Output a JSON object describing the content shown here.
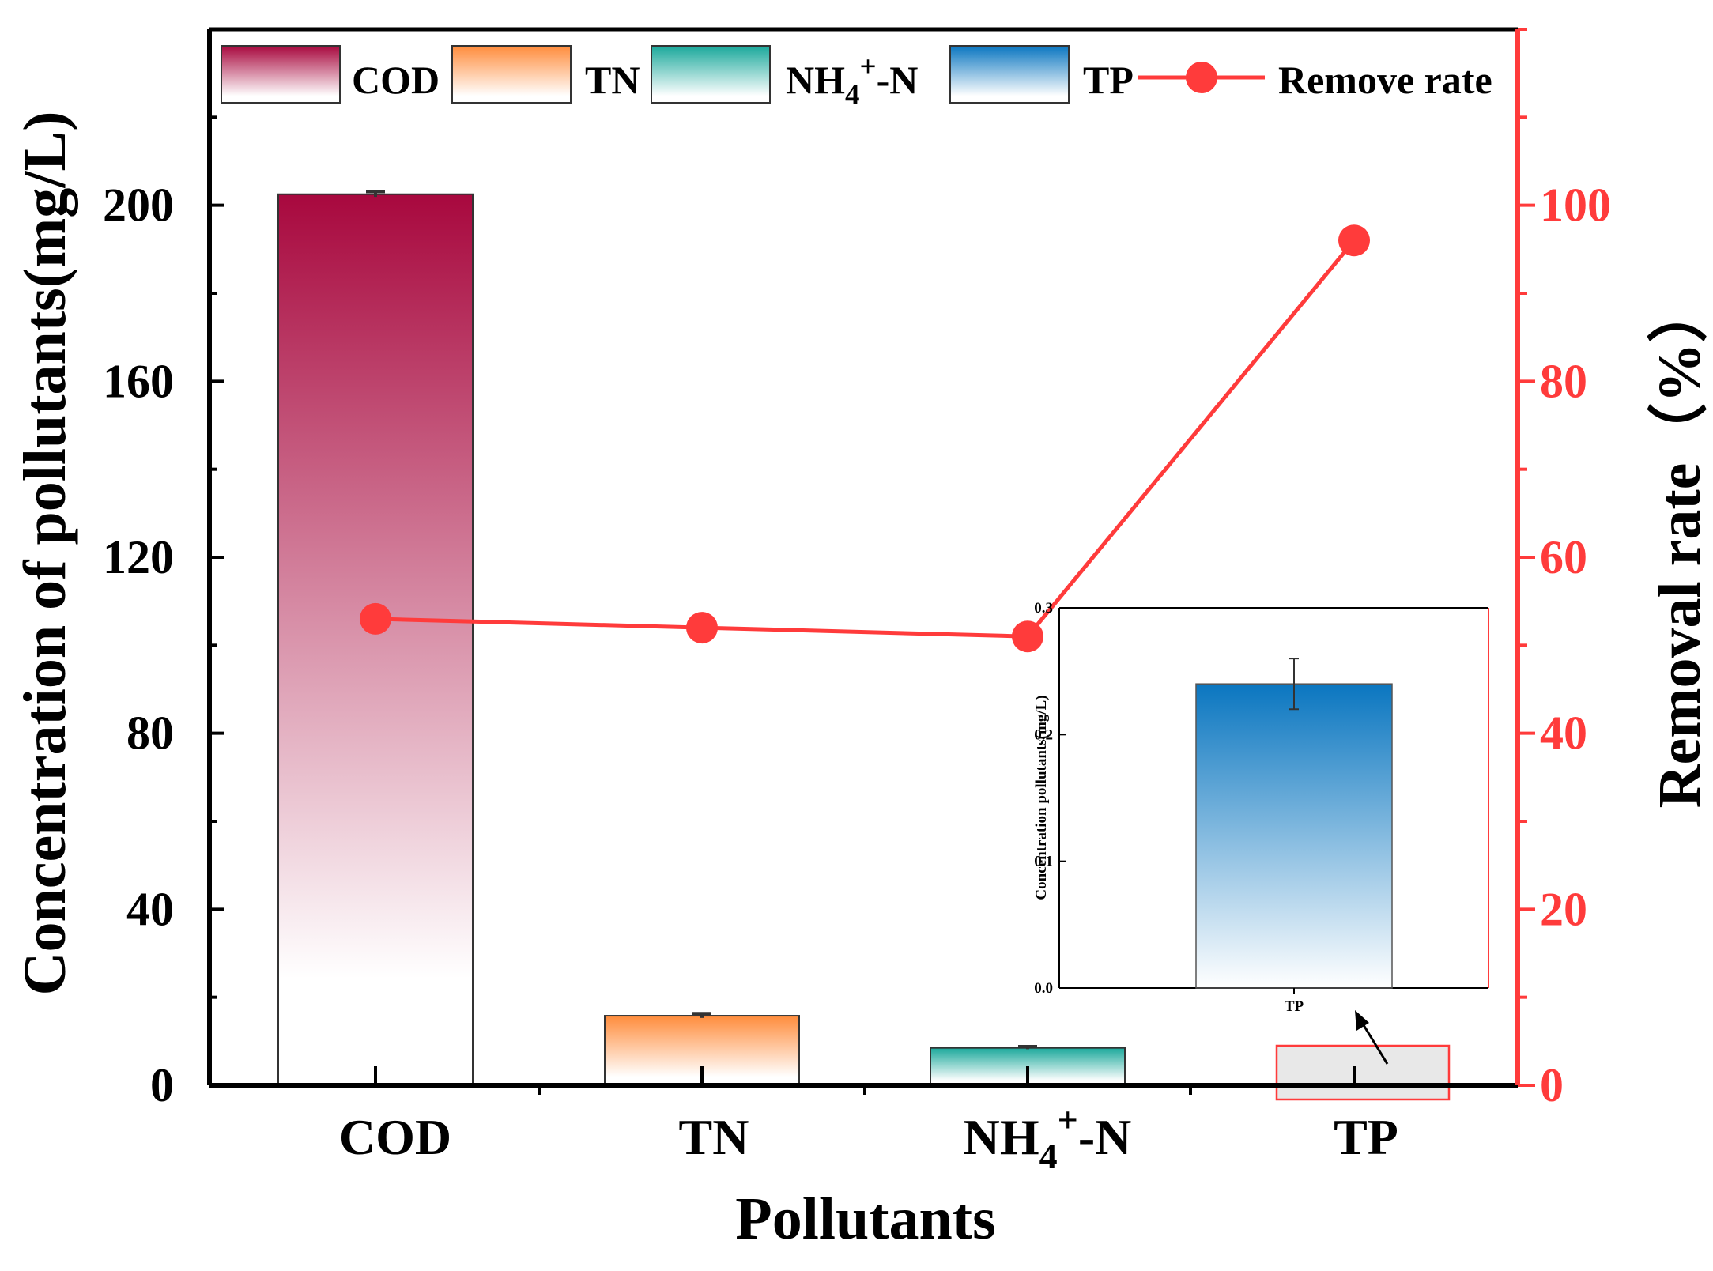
{
  "chart_data": {
    "type": "bar",
    "categories": [
      "COD",
      "TN",
      "NH4+-N",
      "TP"
    ],
    "category_labels": [
      {
        "main": "COD"
      },
      {
        "main": "TN"
      },
      {
        "main": "NH",
        "sub": "4",
        "sup": "+",
        "tail": "-N"
      },
      {
        "main": "TP"
      }
    ],
    "series": [
      {
        "name": "Concentration of pollutants",
        "axis": "left",
        "type": "bar",
        "values": [
          202.5,
          15.8,
          8.5,
          0.24
        ],
        "errors": [
          0.6,
          0.5,
          0.3,
          0.02
        ]
      },
      {
        "name": "Remove rate",
        "axis": "right",
        "type": "line",
        "values": [
          53,
          52,
          51,
          96
        ]
      }
    ],
    "bar_colors": [
      "#a8083e",
      "#ff8c3c",
      "#1aa89b",
      "#0a76c0"
    ],
    "line_color": "#ff3b3b",
    "xlabel": "Pollutants",
    "ylabel_left": "Concentration of pollutants(mg/L)",
    "ylabel_right": "Removal rate（%）",
    "ylim_left": [
      0,
      240
    ],
    "ylim_right": [
      0,
      120
    ],
    "yticks_left": [
      0,
      40,
      80,
      120,
      160,
      200
    ],
    "yticks_right": [
      0,
      20,
      40,
      60,
      80,
      100
    ],
    "legend": {
      "position": "top",
      "entries": [
        {
          "label": "COD",
          "kind": "bar",
          "color": "#a8083e"
        },
        {
          "label": "TN",
          "kind": "bar",
          "color": "#ff8c3c"
        },
        {
          "label": "NH4+-N",
          "main": "NH",
          "sub": "4",
          "sup": "+",
          "tail": "-N",
          "kind": "bar",
          "color": "#1aa89b"
        },
        {
          "label": "TP",
          "kind": "bar",
          "color": "#0a76c0"
        },
        {
          "label": "Remove rate",
          "kind": "line",
          "color": "#ff3b3b"
        }
      ]
    },
    "inset": {
      "type": "bar",
      "category": "TP",
      "value": 0.24,
      "error": 0.02,
      "ylabel": "Concentration pollutants(mg/L)",
      "ylim": [
        0,
        0.3
      ],
      "yticks": [
        "0.0",
        "0.1",
        "0.2",
        "0.3"
      ],
      "xlabel": "TP",
      "color": "#0a76c0",
      "highlight_color": "#ff3b3b"
    }
  }
}
